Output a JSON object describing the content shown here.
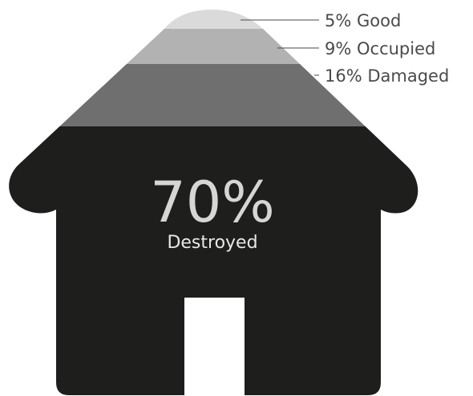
{
  "chart_data": {
    "type": "stacked-house-pictograph",
    "segments": [
      {
        "label": "Good",
        "value": 5,
        "display": "5%",
        "color": "#dadada"
      },
      {
        "label": "Occupied",
        "value": 9,
        "display": "9%",
        "color": "#b2b2b2"
      },
      {
        "label": "Damaged",
        "value": 16,
        "display": "16%",
        "color": "#6f6f6f"
      },
      {
        "label": "Destroyed",
        "value": 70,
        "display": "70%",
        "color": "#1e1e1d"
      }
    ],
    "highlight": {
      "value": "70%",
      "label": "Destroyed"
    }
  }
}
